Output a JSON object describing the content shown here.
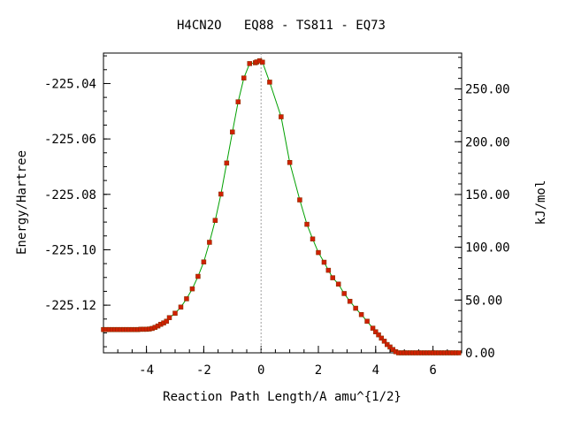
{
  "chart_data": {
    "type": "scatter",
    "title": "H4CN2O   EQ88 - TS811 - EQ73",
    "xlabel": "Reaction Path Length/A amu^{1/2}",
    "ylabel": "Energy/Hartree",
    "y2label": "kJ/mol",
    "xlim": [
      -5.5,
      7.0
    ],
    "ylim": [
      -225.1372,
      -225.029
    ],
    "y2lim": [
      0.0,
      284.0
    ],
    "x_ticks": [
      {
        "value": -4,
        "label": "-4"
      },
      {
        "value": -2,
        "label": "-2"
      },
      {
        "value": 0,
        "label": "0"
      },
      {
        "value": 2,
        "label": "2"
      },
      {
        "value": 4,
        "label": "4"
      },
      {
        "value": 6,
        "label": "6"
      }
    ],
    "y_ticks": [
      {
        "value": -225.04,
        "label": "-225.04"
      },
      {
        "value": -225.06,
        "label": "-225.06"
      },
      {
        "value": -225.08,
        "label": "-225.08"
      },
      {
        "value": -225.1,
        "label": "-225.10"
      },
      {
        "value": -225.12,
        "label": "-225.12"
      }
    ],
    "y2_ticks": [
      {
        "value": 0.0,
        "label": "0.00"
      },
      {
        "value": 50.0,
        "label": "50.00"
      },
      {
        "value": 100.0,
        "label": "100.00"
      },
      {
        "value": 150.0,
        "label": "150.00"
      },
      {
        "value": 200.0,
        "label": "200.00"
      },
      {
        "value": 250.0,
        "label": "250.00"
      }
    ],
    "ts_x": 0.0,
    "colors": {
      "curve": "#00a000",
      "points": "#d02000",
      "ts_line": "#a0a0a0",
      "axes": "#000000"
    },
    "series": [
      {
        "values_x": [
          -5.5,
          -5.4,
          -5.3,
          -5.2,
          -5.1,
          -5.0,
          -4.9,
          -4.8,
          -4.7,
          -4.6,
          -4.5,
          -4.4,
          -4.3,
          -4.2,
          -4.1,
          -4.0,
          -3.9,
          -3.8,
          -3.7,
          -3.6,
          -3.5,
          -3.4,
          -3.3,
          -3.2,
          -3.0,
          -2.8,
          -2.6,
          -2.4,
          -2.2,
          -2.0,
          -1.8,
          -1.6,
          -1.4,
          -1.2,
          -1.0,
          -0.8,
          -0.6,
          -0.4,
          -0.2,
          -0.15,
          -0.05,
          0.05,
          0.3,
          0.7,
          1.0,
          1.35,
          1.6,
          1.8,
          2.0,
          2.2,
          2.35,
          2.5,
          2.7,
          2.9,
          3.1,
          3.3,
          3.5,
          3.7,
          3.9,
          4.0,
          4.1,
          4.2,
          4.3,
          4.4,
          4.5,
          4.6,
          4.7,
          4.8,
          4.9,
          5.0,
          5.1,
          5.2,
          5.3,
          5.4,
          5.5,
          5.6,
          5.7,
          5.8,
          5.9,
          6.0,
          6.1,
          6.2,
          6.3,
          6.4,
          6.5,
          6.6,
          6.7,
          6.8,
          6.9
        ],
        "values_y": [
          -225.1288,
          -225.1288,
          -225.1288,
          -225.1288,
          -225.1288,
          -225.1288,
          -225.1288,
          -225.1288,
          -225.1288,
          -225.1288,
          -225.1288,
          -225.1288,
          -225.1288,
          -225.1287,
          -225.1287,
          -225.1287,
          -225.1286,
          -225.1284,
          -225.128,
          -225.1275,
          -225.1269,
          -225.1264,
          -225.1258,
          -225.1245,
          -225.1229,
          -225.1207,
          -225.1177,
          -225.1141,
          -225.1096,
          -225.1044,
          -225.0973,
          -225.0894,
          -225.0799,
          -225.0687,
          -225.0575,
          -225.0466,
          -225.038,
          -225.0328,
          -225.0325,
          -225.0322,
          -225.0318,
          -225.0323,
          -225.0395,
          -225.052,
          -225.0685,
          -225.082,
          -225.0908,
          -225.0961,
          -225.101,
          -225.1045,
          -225.1074,
          -225.1101,
          -225.1124,
          -225.1158,
          -225.1186,
          -225.1211,
          -225.1234,
          -225.1258,
          -225.1283,
          -225.1296,
          -225.1307,
          -225.1319,
          -225.133,
          -225.1342,
          -225.1351,
          -225.136,
          -225.1368,
          -225.1372,
          -225.1372,
          -225.1372,
          -225.1372,
          -225.1372,
          -225.1372,
          -225.1372,
          -225.1372,
          -225.1372,
          -225.1372,
          -225.1372,
          -225.1372,
          -225.1372,
          -225.1372,
          -225.1372,
          -225.1372,
          -225.1372,
          -225.1372,
          -225.1372,
          -225.1372,
          -225.1372,
          -225.1372
        ]
      }
    ],
    "grid": false,
    "legend": "none"
  }
}
